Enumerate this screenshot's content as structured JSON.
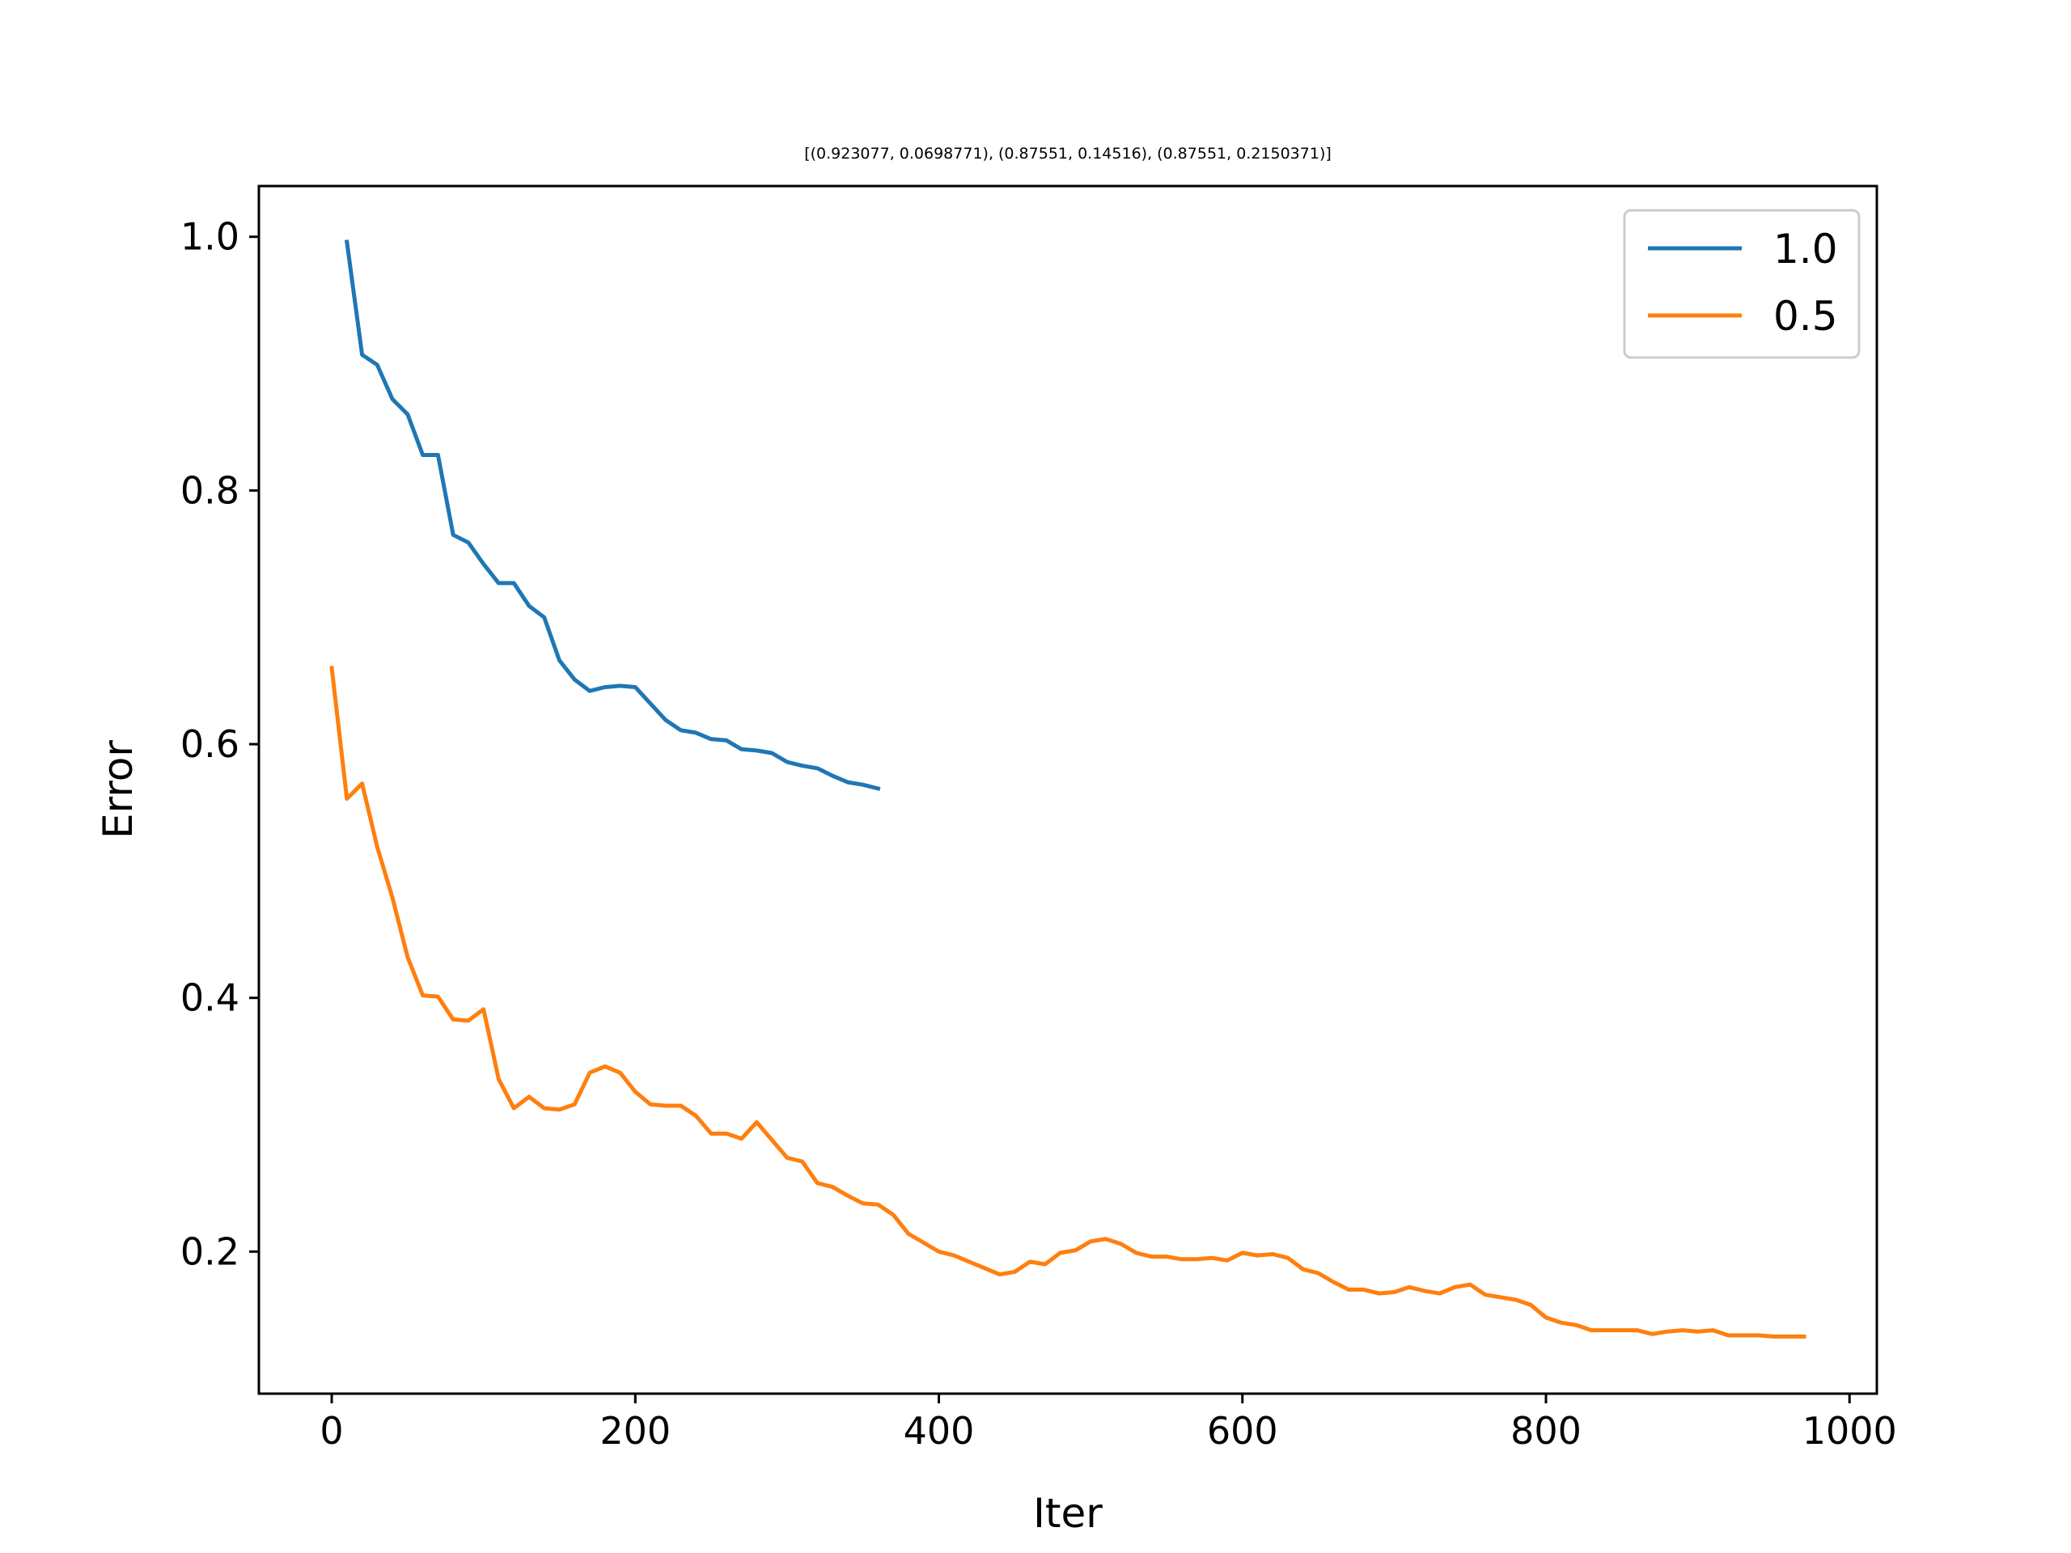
{
  "chart_data": {
    "type": "line",
    "title": "[(0.923077, 0.0698771), (0.87551, 0.14516), (0.87551, 0.2150371)]",
    "xlabel": "Iter",
    "ylabel": "Error",
    "xlim": [
      -48,
      1018
    ],
    "ylim": [
      0.088,
      1.04
    ],
    "xticks": [
      0,
      200,
      400,
      600,
      800,
      1000
    ],
    "xtick_labels": [
      "0",
      "200",
      "400",
      "600",
      "800",
      "1000"
    ],
    "yticks": [
      0.2,
      0.4,
      0.6,
      0.8,
      1.0
    ],
    "ytick_labels": [
      "0.2",
      "0.4",
      "0.6",
      "0.8",
      "1.0"
    ],
    "grid": false,
    "legend_position": "top-right",
    "series": [
      {
        "name": "1.0",
        "color": "#1f77b4",
        "x": [
          10,
          20,
          30,
          40,
          50,
          60,
          70,
          80,
          90,
          100,
          110,
          120,
          130,
          140,
          150,
          160,
          170,
          180,
          190,
          200,
          210,
          220,
          230,
          240,
          250,
          260,
          270,
          280,
          290,
          300,
          310,
          320,
          330,
          340,
          350,
          360
        ],
        "y": [
          0.996,
          0.907,
          0.899,
          0.872,
          0.86,
          0.828,
          0.828,
          0.765,
          0.759,
          0.742,
          0.727,
          0.727,
          0.709,
          0.7,
          0.666,
          0.651,
          0.642,
          0.645,
          0.646,
          0.645,
          0.632,
          0.619,
          0.611,
          0.609,
          0.604,
          0.603,
          0.596,
          0.595,
          0.593,
          0.586,
          0.583,
          0.581,
          0.575,
          0.57,
          0.568,
          0.565
        ]
      },
      {
        "name": "0.5",
        "color": "#ff7f0e",
        "x": [
          0,
          10,
          20,
          30,
          40,
          50,
          60,
          70,
          80,
          90,
          100,
          110,
          120,
          130,
          140,
          150,
          160,
          170,
          180,
          190,
          200,
          210,
          220,
          230,
          240,
          250,
          260,
          270,
          280,
          290,
          300,
          310,
          320,
          330,
          340,
          350,
          360,
          370,
          380,
          390,
          400,
          410,
          420,
          430,
          440,
          450,
          460,
          470,
          480,
          490,
          500,
          510,
          520,
          530,
          540,
          550,
          560,
          570,
          580,
          590,
          600,
          610,
          620,
          630,
          640,
          650,
          660,
          670,
          680,
          690,
          700,
          710,
          720,
          730,
          740,
          750,
          760,
          770,
          780,
          790,
          800,
          810,
          820,
          830,
          840,
          850,
          860,
          870,
          880,
          890,
          900,
          910,
          920,
          930,
          940,
          950,
          960,
          970
        ],
        "y": [
          0.66,
          0.557,
          0.569,
          0.519,
          0.479,
          0.432,
          0.402,
          0.401,
          0.383,
          0.382,
          0.391,
          0.336,
          0.313,
          0.322,
          0.313,
          0.312,
          0.316,
          0.341,
          0.346,
          0.341,
          0.326,
          0.316,
          0.315,
          0.315,
          0.307,
          0.293,
          0.293,
          0.289,
          0.302,
          0.288,
          0.274,
          0.271,
          0.254,
          0.251,
          0.244,
          0.238,
          0.237,
          0.229,
          0.214,
          0.207,
          0.2,
          0.197,
          0.192,
          0.187,
          0.182,
          0.184,
          0.192,
          0.19,
          0.199,
          0.201,
          0.208,
          0.21,
          0.206,
          0.199,
          0.196,
          0.196,
          0.194,
          0.194,
          0.195,
          0.193,
          0.199,
          0.197,
          0.198,
          0.195,
          0.186,
          0.183,
          0.176,
          0.17,
          0.17,
          0.167,
          0.168,
          0.172,
          0.169,
          0.167,
          0.172,
          0.174,
          0.166,
          0.164,
          0.162,
          0.158,
          0.148,
          0.144,
          0.142,
          0.138,
          0.138,
          0.138,
          0.138,
          0.135,
          0.137,
          0.138,
          0.137,
          0.138,
          0.134,
          0.134,
          0.134,
          0.133,
          0.133,
          0.133
        ]
      }
    ]
  }
}
